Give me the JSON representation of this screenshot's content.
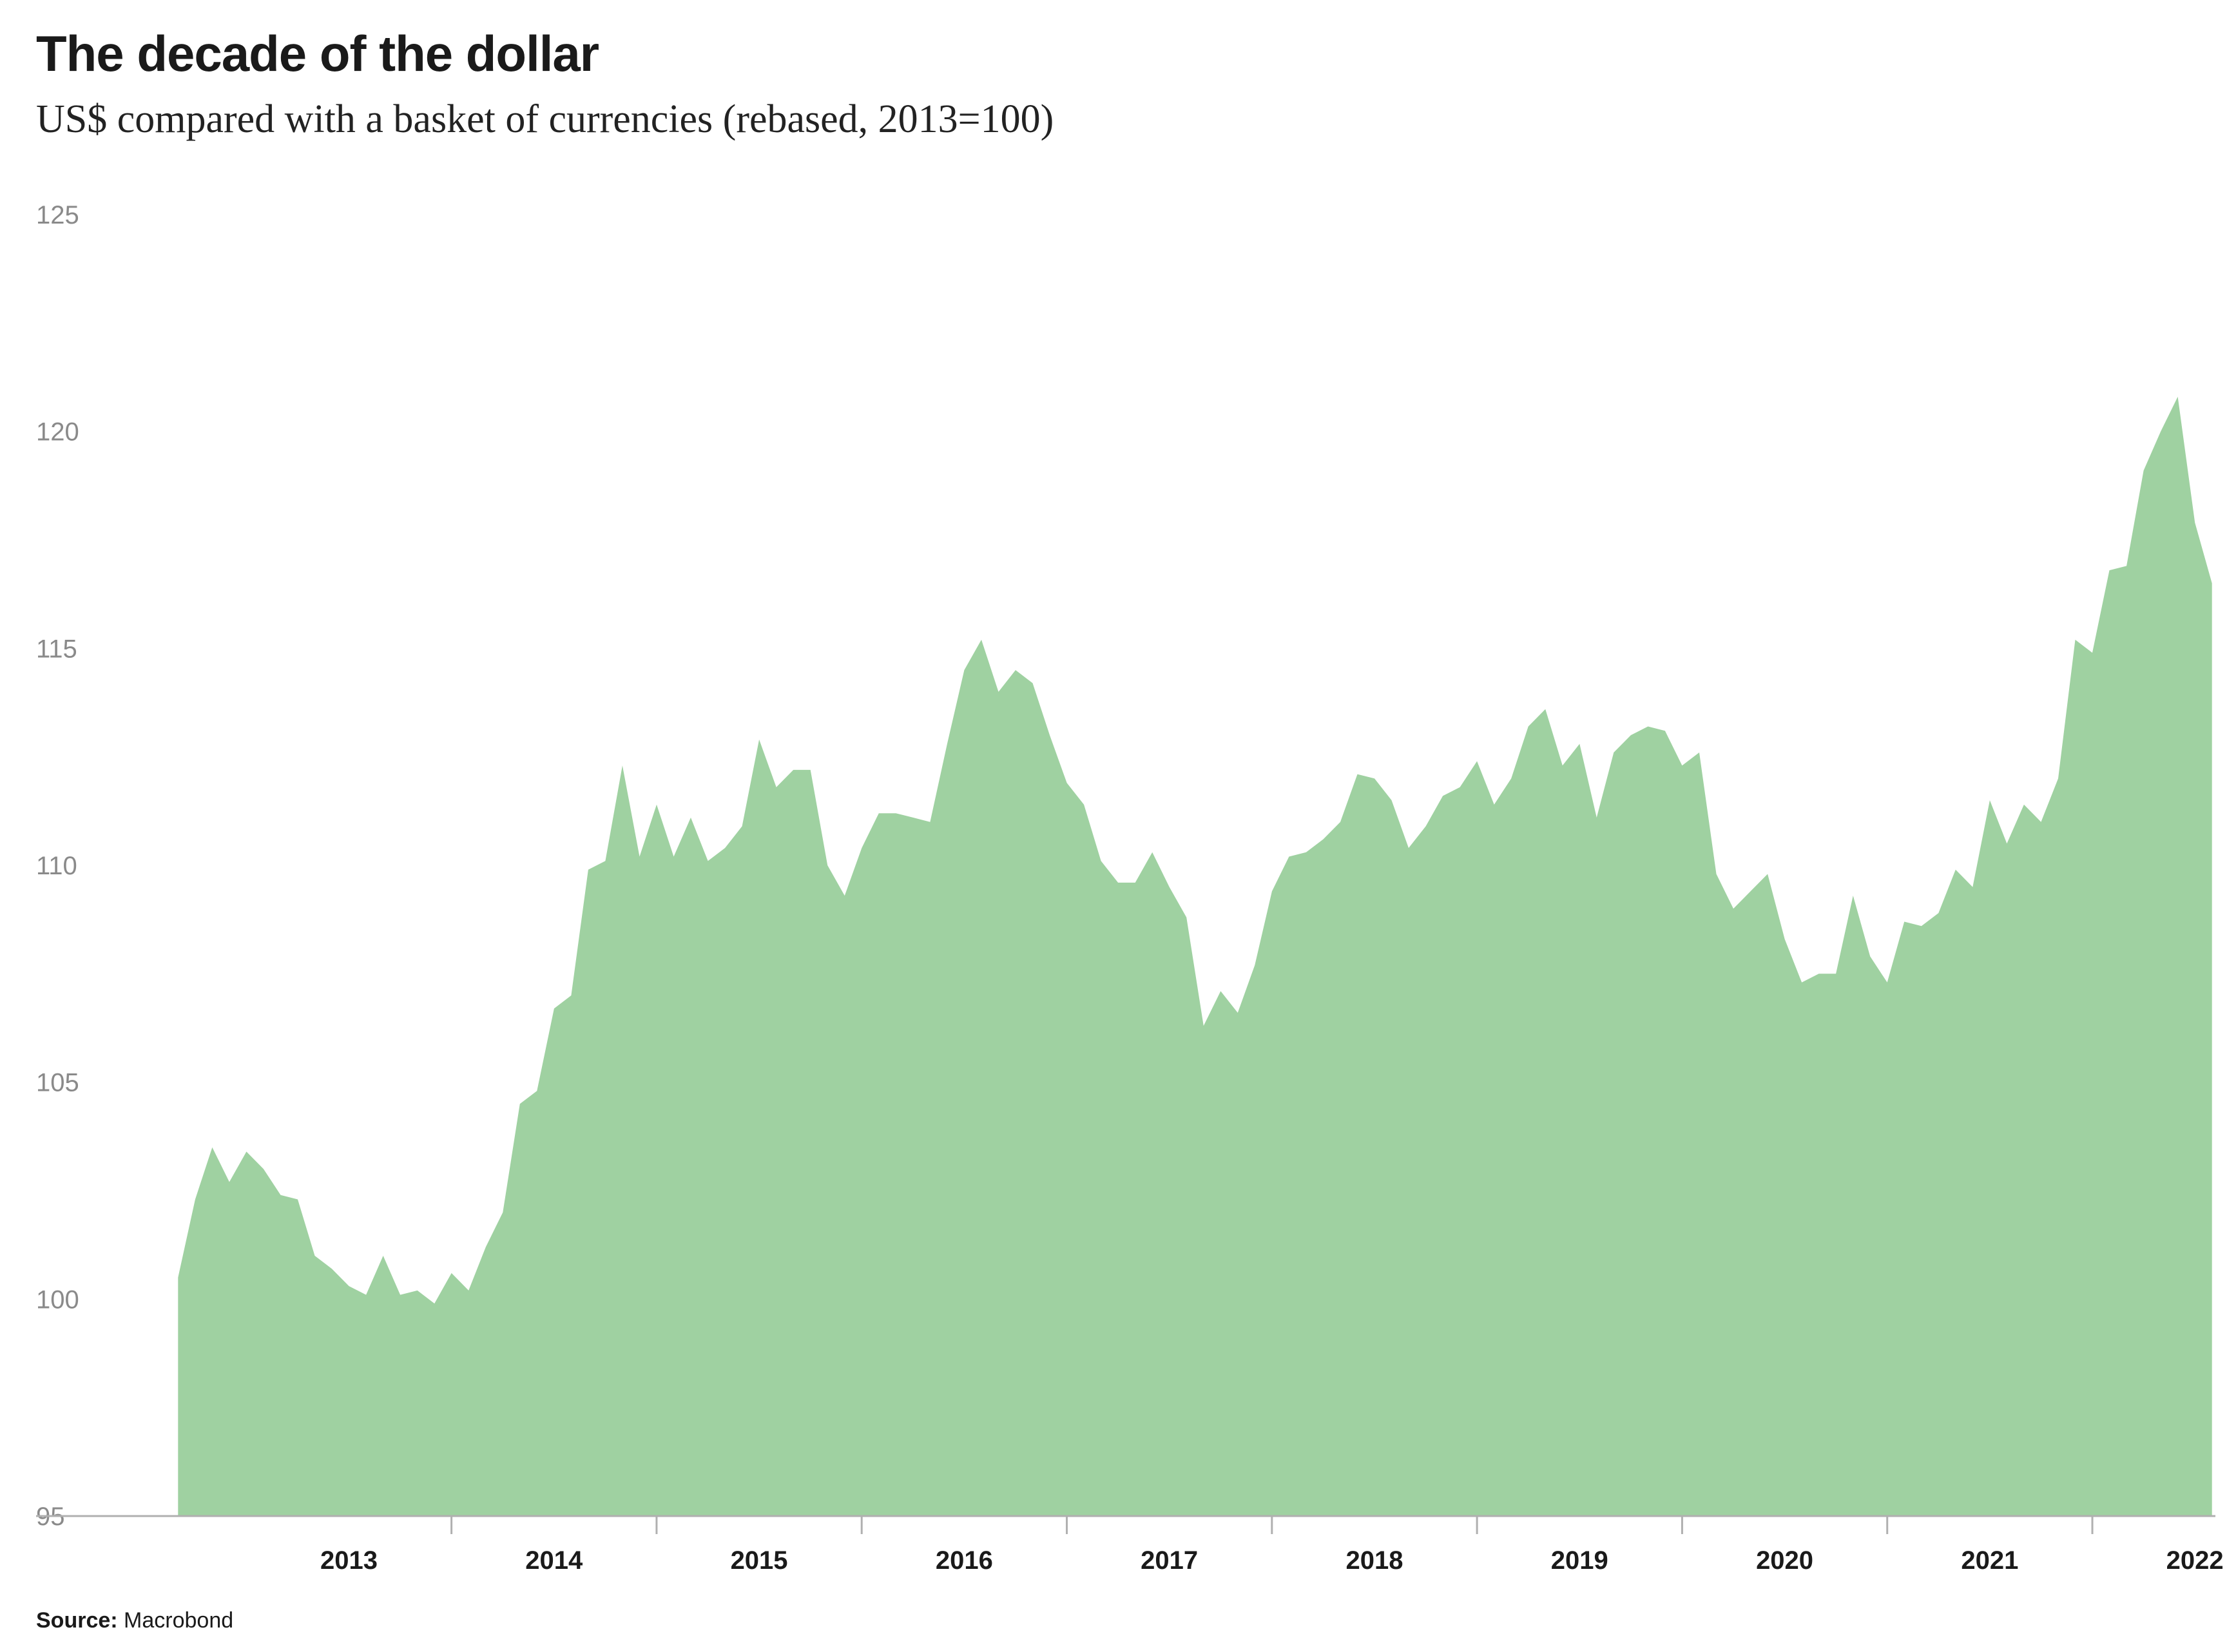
{
  "colors": {
    "area": "#9fd1a1",
    "axis": "#b0b0b0",
    "ytick": "#8a8a8a",
    "text": "#1a1a1a"
  },
  "chart_data": {
    "type": "area",
    "title": "The decade of the dollar",
    "subtitle": "US$ compared with a basket of currencies (rebased, 2013=100)",
    "source_label": "Source:",
    "source_value": "Macrobond",
    "ylim": [
      95,
      125
    ],
    "yticks": [
      95,
      100,
      105,
      110,
      115,
      120,
      125
    ],
    "xlim": [
      2012.6,
      2022.6
    ],
    "xticks": [
      "2013",
      "2014",
      "2015",
      "2016",
      "2017",
      "2018",
      "2019",
      "2020",
      "2021",
      "2022"
    ],
    "grid": false,
    "legend": "none",
    "series": [
      {
        "x_start": 2012.667,
        "x_step": 0.08333,
        "values": [
          100.5,
          102.3,
          103.5,
          102.7,
          103.4,
          103.0,
          102.4,
          102.3,
          101.0,
          100.7,
          100.3,
          100.1,
          101.0,
          100.1,
          100.2,
          99.9,
          100.6,
          100.2,
          101.2,
          102.0,
          104.5,
          104.8,
          106.7,
          107.0,
          109.9,
          110.1,
          112.3,
          110.2,
          111.4,
          110.2,
          111.1,
          110.1,
          110.4,
          110.9,
          112.9,
          111.8,
          112.2,
          112.2,
          110.0,
          109.3,
          110.4,
          111.2,
          111.2,
          111.1,
          111.0,
          112.8,
          114.5,
          115.2,
          114.0,
          114.5,
          114.2,
          113.0,
          111.9,
          111.4,
          110.1,
          109.6,
          109.6,
          110.3,
          109.5,
          108.8,
          106.3,
          107.1,
          106.6,
          107.7,
          109.4,
          110.2,
          110.3,
          110.6,
          111.0,
          112.1,
          112.0,
          111.5,
          110.4,
          110.9,
          111.6,
          111.8,
          112.4,
          111.4,
          112.0,
          113.2,
          113.6,
          112.3,
          112.8,
          111.1,
          112.6,
          113.0,
          113.2,
          113.1,
          112.3,
          112.6,
          109.8,
          109.0,
          109.4,
          109.8,
          108.3,
          107.3,
          107.5,
          107.5,
          109.3,
          107.9,
          107.3,
          108.7,
          108.6,
          108.9,
          109.9,
          109.5,
          111.5,
          110.5,
          111.4,
          111.0,
          112.0,
          115.2,
          114.9,
          116.8,
          116.9,
          119.1,
          120.0,
          120.8,
          117.9,
          116.5
        ]
      }
    ]
  }
}
